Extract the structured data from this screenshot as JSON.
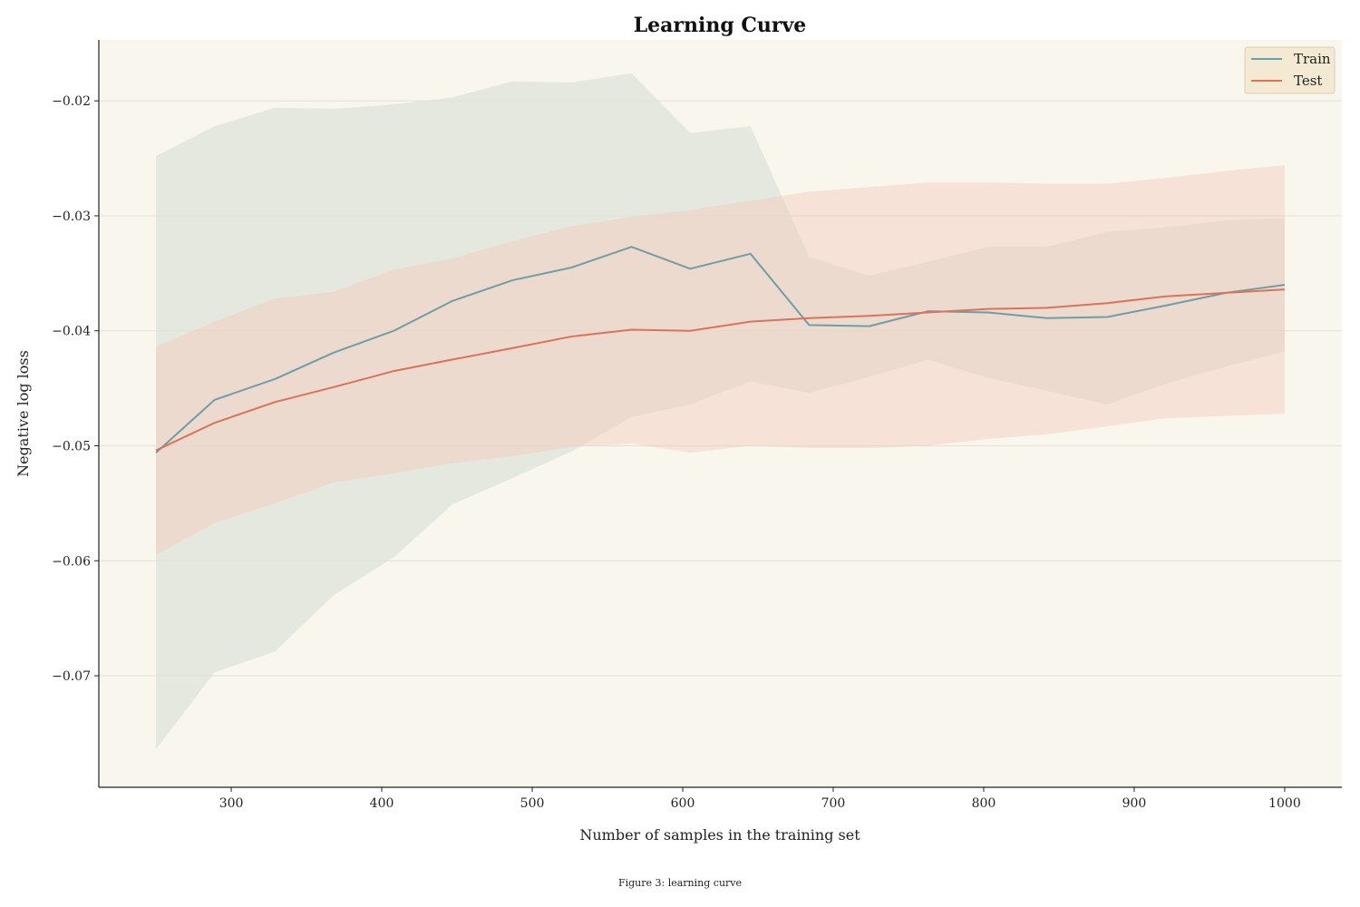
{
  "caption": "Figure 3: learning curve",
  "colors": {
    "plot_background": "#f9f6ee",
    "legend_background": "#f4e9d2",
    "grid": "#e3e0d6",
    "train": "#6f9ea6",
    "test": "#d9735a",
    "train_band": "#dde3da",
    "test_band": "#f2c9b8"
  },
  "chart_data": {
    "type": "line",
    "title": "Learning Curve",
    "xlabel": "Number of samples in the training set",
    "ylabel": "Negative log loss",
    "xlim": [
      212,
      1038
    ],
    "ylim": [
      -0.0797,
      -0.0147
    ],
    "x_ticks": [
      300,
      400,
      500,
      600,
      700,
      800,
      900,
      1000
    ],
    "x_tick_labels": [
      "300",
      "400",
      "500",
      "600",
      "700",
      "800",
      "900",
      "1000"
    ],
    "y_ticks": [
      -0.07,
      -0.06,
      -0.05,
      -0.04,
      -0.03,
      -0.02
    ],
    "y_tick_labels": [
      "−0.07",
      "−0.06",
      "−0.05",
      "−0.04",
      "−0.03",
      "−0.02"
    ],
    "grid": "horizontal",
    "legend_position": "top-right",
    "x": [
      250,
      289,
      329,
      368,
      408,
      447,
      487,
      526,
      566,
      605,
      645,
      684,
      724,
      763,
      803,
      842,
      882,
      921,
      961,
      1000
    ],
    "series": [
      {
        "name": "Train",
        "color_key": "train",
        "mean": [
          -0.0506,
          -0.046,
          -0.0442,
          -0.0419,
          -0.04,
          -0.0374,
          -0.0356,
          -0.0345,
          -0.0327,
          -0.0346,
          -0.0333,
          -0.0395,
          -0.0396,
          -0.0383,
          -0.0384,
          -0.0389,
          -0.0388,
          -0.0378,
          -0.0367,
          -0.036
        ],
        "upper": [
          -0.0248,
          -0.0222,
          -0.0206,
          -0.0207,
          -0.0203,
          -0.0197,
          -0.0183,
          -0.0184,
          -0.0176,
          -0.0228,
          -0.0222,
          -0.0336,
          -0.0352,
          -0.034,
          -0.0327,
          -0.0327,
          -0.0314,
          -0.031,
          -0.0304,
          -0.0302
        ],
        "lower": [
          -0.0764,
          -0.0697,
          -0.0679,
          -0.063,
          -0.0597,
          -0.0551,
          -0.0528,
          -0.0505,
          -0.0475,
          -0.0464,
          -0.0444,
          -0.0454,
          -0.044,
          -0.0425,
          -0.0441,
          -0.0452,
          -0.0464,
          -0.0446,
          -0.0431,
          -0.0418
        ]
      },
      {
        "name": "Test",
        "color_key": "test",
        "mean": [
          -0.0504,
          -0.048,
          -0.0462,
          -0.0449,
          -0.0435,
          -0.0425,
          -0.0415,
          -0.0405,
          -0.0399,
          -0.04,
          -0.0392,
          -0.0389,
          -0.0387,
          -0.0384,
          -0.0381,
          -0.038,
          -0.0376,
          -0.037,
          -0.0367,
          -0.0364
        ],
        "upper": [
          -0.0414,
          -0.0392,
          -0.0372,
          -0.0366,
          -0.0347,
          -0.0337,
          -0.0322,
          -0.0309,
          -0.0301,
          -0.0295,
          -0.0287,
          -0.0279,
          -0.0275,
          -0.0271,
          -0.0271,
          -0.0272,
          -0.0272,
          -0.0267,
          -0.0261,
          -0.0256
        ],
        "lower": [
          -0.0595,
          -0.0567,
          -0.055,
          -0.0532,
          -0.0524,
          -0.0515,
          -0.0509,
          -0.0501,
          -0.0498,
          -0.0506,
          -0.05,
          -0.0502,
          -0.0502,
          -0.05,
          -0.0494,
          -0.049,
          -0.0483,
          -0.0476,
          -0.0474,
          -0.0472
        ]
      }
    ]
  }
}
